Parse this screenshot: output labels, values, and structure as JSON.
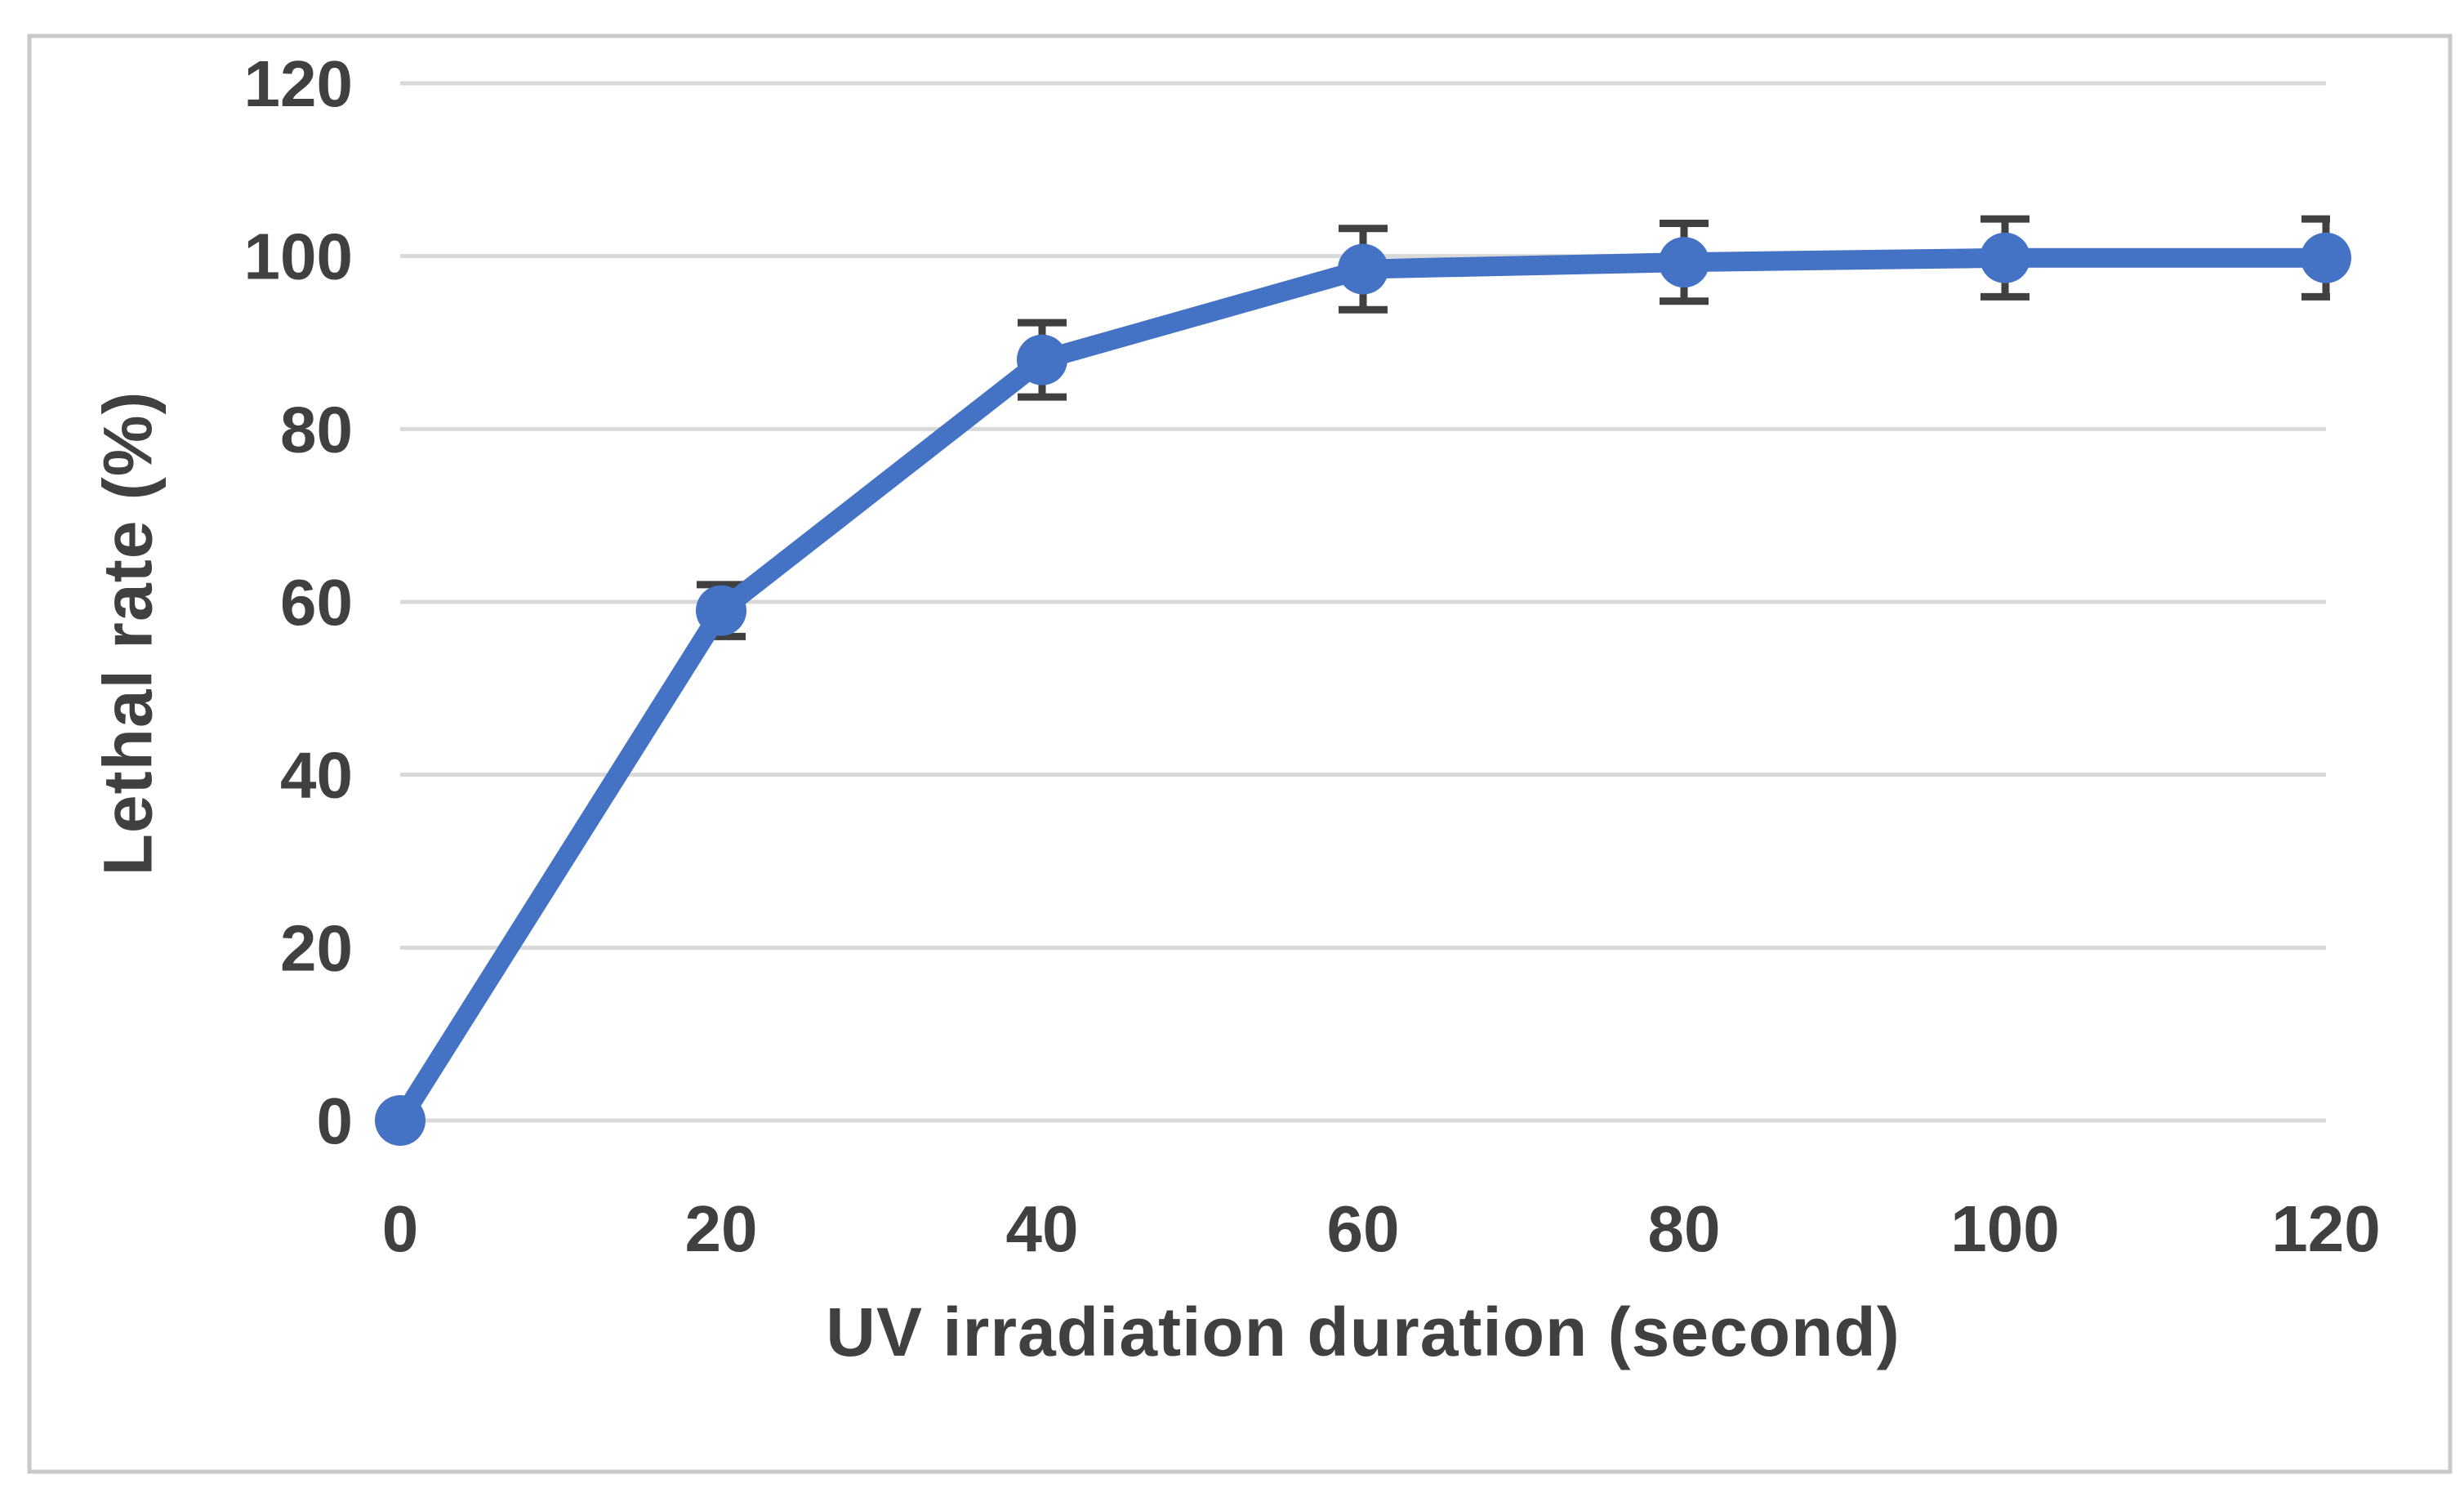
{
  "chart_data": {
    "type": "line",
    "title": "",
    "xlabel": "UV irradiation duration (second)",
    "ylabel": "Lethal rate (%)",
    "x": [
      0,
      20,
      40,
      60,
      80,
      100,
      120
    ],
    "series": [
      {
        "name": "Lethal rate",
        "values": [
          0,
          59,
          88,
          98.5,
          99.3,
          99.8,
          99.8
        ],
        "error_bars": [
          0,
          3,
          4.3,
          4.7,
          4.5,
          4.5,
          4.5
        ]
      }
    ],
    "x_ticks": [
      0,
      20,
      40,
      60,
      80,
      100,
      120
    ],
    "y_ticks": [
      0,
      20,
      40,
      60,
      80,
      100,
      120
    ],
    "xlim": [
      0,
      120
    ],
    "ylim": [
      0,
      120
    ],
    "grid": "horizontal",
    "legend": "none",
    "marker": "circle",
    "line_color": "#4472C4",
    "error_bar_color": "#404040",
    "gridline_color": "#D9D9D9",
    "axis_line_color": "#D9D9D9",
    "text_color": "#404040",
    "frame_color": "#C9C9C9",
    "background": "#FFFFFF"
  }
}
